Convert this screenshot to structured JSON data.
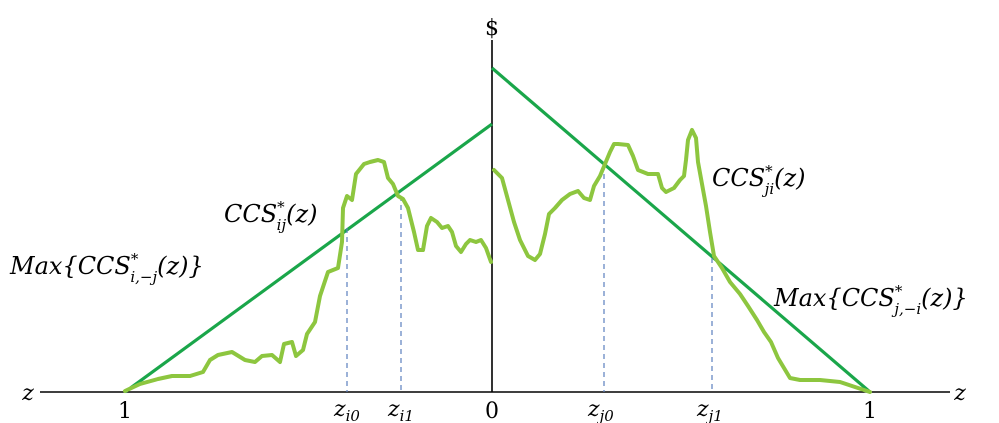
{
  "axis": {
    "vertical_label": "$",
    "left_label": "z",
    "right_label": "z",
    "tick_left": "1",
    "tick_center": "0",
    "tick_right": "1"
  },
  "markers": [
    {
      "base": "z",
      "sub": "i0"
    },
    {
      "base": "z",
      "sub": "i1"
    },
    {
      "base": "z",
      "sub": "j0"
    },
    {
      "base": "z",
      "sub": "j1"
    }
  ],
  "labels": {
    "ccs_ij": {
      "base": "CCS",
      "sup": "*",
      "sub": "ij",
      "arg": "(z)"
    },
    "ccs_ji": {
      "base": "CCS",
      "sup": "*",
      "sub": "ji",
      "arg": "(z)"
    },
    "max_left": {
      "pre": "Max{",
      "base": "CCS",
      "sup": "*",
      "sub": "i,−j",
      "arg": "(z)}"
    },
    "max_right": {
      "pre": "Max{",
      "base": "CCS",
      "sup": "*",
      "sub": "j,−i",
      "arg": "(z)}"
    }
  },
  "colors": {
    "max_line": "#1aa64a",
    "ccs_curve": "#8dc63f",
    "dashed": "#5b7fbf",
    "axis": "#000000"
  }
}
